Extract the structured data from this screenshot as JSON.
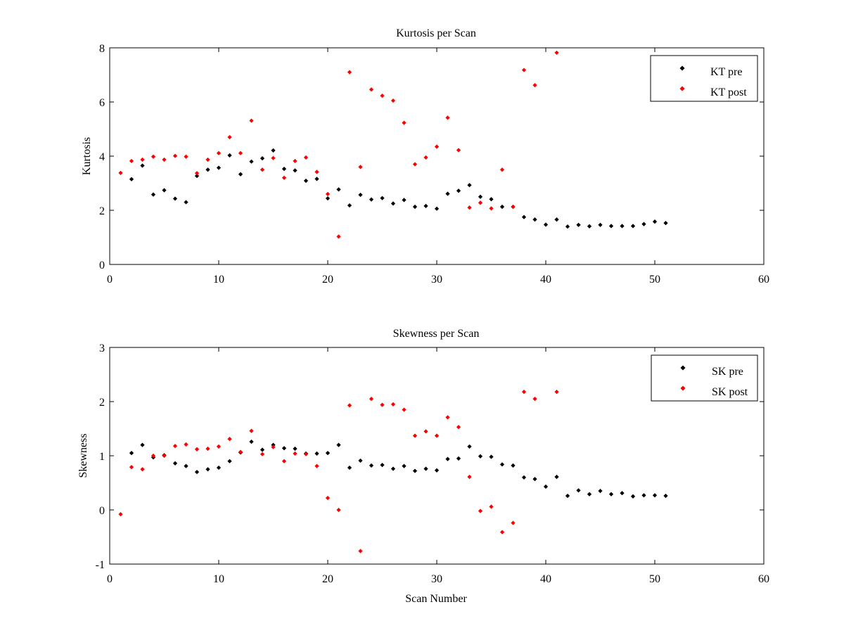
{
  "colors": {
    "pre": "#000000",
    "post": "#ff0000",
    "background": "#ffffff",
    "axes": "#000000"
  },
  "chart_data": [
    {
      "type": "scatter",
      "title": "Kurtosis per Scan",
      "xlabel": "",
      "ylabel": "Kurtosis",
      "xlim": [
        0,
        60
      ],
      "ylim": [
        0,
        8
      ],
      "xticks": [
        "0",
        "10",
        "20",
        "30",
        "40",
        "50",
        "60"
      ],
      "yticks": [
        "0",
        "2",
        "4",
        "6",
        "8"
      ],
      "grid": false,
      "legend_position": "top-right",
      "series": [
        {
          "name": "KT pre",
          "color": "#000000",
          "points": [
            [
              2,
              3.15
            ],
            [
              3,
              3.65
            ],
            [
              4,
              2.58
            ],
            [
              5,
              2.74
            ],
            [
              6,
              2.43
            ],
            [
              7,
              2.3
            ],
            [
              8,
              3.27
            ],
            [
              9,
              3.5
            ],
            [
              10,
              3.57
            ],
            [
              11,
              4.03
            ],
            [
              12,
              3.33
            ],
            [
              13,
              3.8
            ],
            [
              14,
              3.92
            ],
            [
              15,
              4.21
            ],
            [
              16,
              3.53
            ],
            [
              17,
              3.47
            ],
            [
              18,
              3.09
            ],
            [
              19,
              3.16
            ],
            [
              20,
              2.44
            ],
            [
              21,
              2.77
            ],
            [
              22,
              2.18
            ],
            [
              23,
              2.57
            ],
            [
              24,
              2.4
            ],
            [
              25,
              2.45
            ],
            [
              26,
              2.25
            ],
            [
              27,
              2.38
            ],
            [
              28,
              2.13
            ],
            [
              29,
              2.16
            ],
            [
              30,
              2.06
            ],
            [
              31,
              2.61
            ],
            [
              32,
              2.72
            ],
            [
              33,
              2.93
            ],
            [
              34,
              2.5
            ],
            [
              35,
              2.41
            ],
            [
              36,
              2.13
            ],
            [
              37,
              2.13
            ],
            [
              38,
              1.75
            ],
            [
              39,
              1.66
            ],
            [
              40,
              1.47
            ],
            [
              41,
              1.66
            ],
            [
              42,
              1.4
            ],
            [
              43,
              1.46
            ],
            [
              44,
              1.41
            ],
            [
              45,
              1.46
            ],
            [
              46,
              1.42
            ],
            [
              47,
              1.42
            ],
            [
              48,
              1.42
            ],
            [
              49,
              1.49
            ],
            [
              50,
              1.58
            ],
            [
              51,
              1.53
            ]
          ]
        },
        {
          "name": "KT post",
          "color": "#ff0000",
          "points": [
            [
              1,
              3.38
            ],
            [
              2,
              3.82
            ],
            [
              3,
              3.87
            ],
            [
              4,
              3.98
            ],
            [
              5,
              3.87
            ],
            [
              6,
              4.01
            ],
            [
              7,
              3.98
            ],
            [
              8,
              3.37
            ],
            [
              9,
              3.87
            ],
            [
              10,
              4.11
            ],
            [
              11,
              4.7
            ],
            [
              12,
              4.11
            ],
            [
              13,
              5.31
            ],
            [
              14,
              3.5
            ],
            [
              15,
              3.93
            ],
            [
              16,
              3.2
            ],
            [
              17,
              3.82
            ],
            [
              18,
              3.95
            ],
            [
              19,
              3.42
            ],
            [
              20,
              2.6
            ],
            [
              21,
              1.03
            ],
            [
              22,
              7.1
            ],
            [
              23,
              3.6
            ],
            [
              24,
              6.46
            ],
            [
              25,
              6.23
            ],
            [
              26,
              6.05
            ],
            [
              27,
              5.23
            ],
            [
              28,
              3.7
            ],
            [
              29,
              3.95
            ],
            [
              30,
              4.35
            ],
            [
              31,
              5.42
            ],
            [
              32,
              4.22
            ],
            [
              33,
              2.1
            ],
            [
              34,
              2.28
            ],
            [
              35,
              2.07
            ],
            [
              36,
              3.5
            ],
            [
              37,
              2.13
            ],
            [
              38,
              7.18
            ],
            [
              39,
              6.62
            ],
            [
              41,
              7.82
            ]
          ]
        }
      ]
    },
    {
      "type": "scatter",
      "title": "Skewness per Scan",
      "xlabel": "Scan Number",
      "ylabel": "Skewness",
      "xlim": [
        0,
        60
      ],
      "ylim": [
        -1,
        3
      ],
      "xticks": [
        "0",
        "10",
        "20",
        "30",
        "40",
        "50",
        "60"
      ],
      "yticks": [
        "-1",
        "0",
        "1",
        "2",
        "3"
      ],
      "grid": false,
      "legend_position": "top-right",
      "series": [
        {
          "name": "SK pre",
          "color": "#000000",
          "points": [
            [
              2,
              1.05
            ],
            [
              3,
              1.2
            ],
            [
              4,
              0.97
            ],
            [
              5,
              1.01
            ],
            [
              6,
              0.86
            ],
            [
              7,
              0.81
            ],
            [
              8,
              0.7
            ],
            [
              9,
              0.75
            ],
            [
              10,
              0.78
            ],
            [
              11,
              0.9
            ],
            [
              12,
              1.06
            ],
            [
              13,
              1.26
            ],
            [
              14,
              1.11
            ],
            [
              15,
              1.2
            ],
            [
              16,
              1.14
            ],
            [
              17,
              1.13
            ],
            [
              18,
              1.04
            ],
            [
              19,
              1.04
            ],
            [
              20,
              1.05
            ],
            [
              21,
              1.2
            ],
            [
              22,
              0.78
            ],
            [
              23,
              0.91
            ],
            [
              24,
              0.82
            ],
            [
              25,
              0.83
            ],
            [
              26,
              0.76
            ],
            [
              27,
              0.81
            ],
            [
              28,
              0.72
            ],
            [
              29,
              0.76
            ],
            [
              30,
              0.73
            ],
            [
              31,
              0.94
            ],
            [
              32,
              0.95
            ],
            [
              33,
              1.17
            ],
            [
              34,
              0.99
            ],
            [
              35,
              0.98
            ],
            [
              36,
              0.84
            ],
            [
              37,
              0.82
            ],
            [
              38,
              0.6
            ],
            [
              39,
              0.57
            ],
            [
              40,
              0.43
            ],
            [
              41,
              0.61
            ],
            [
              42,
              0.26
            ],
            [
              43,
              0.36
            ],
            [
              44,
              0.29
            ],
            [
              45,
              0.35
            ],
            [
              46,
              0.29
            ],
            [
              47,
              0.31
            ],
            [
              48,
              0.25
            ],
            [
              49,
              0.27
            ],
            [
              50,
              0.27
            ],
            [
              51,
              0.26
            ]
          ]
        },
        {
          "name": "SK post",
          "color": "#ff0000",
          "points": [
            [
              1,
              -0.08
            ],
            [
              2,
              0.79
            ],
            [
              3,
              0.75
            ],
            [
              4,
              1.0
            ],
            [
              5,
              1.0
            ],
            [
              6,
              1.18
            ],
            [
              7,
              1.21
            ],
            [
              8,
              1.12
            ],
            [
              9,
              1.13
            ],
            [
              10,
              1.17
            ],
            [
              11,
              1.31
            ],
            [
              12,
              1.07
            ],
            [
              13,
              1.46
            ],
            [
              14,
              1.03
            ],
            [
              15,
              1.16
            ],
            [
              16,
              0.9
            ],
            [
              17,
              1.04
            ],
            [
              18,
              1.03
            ],
            [
              19,
              0.81
            ],
            [
              20,
              0.22
            ],
            [
              21,
              0.0
            ],
            [
              22,
              1.93
            ],
            [
              23,
              -0.76
            ],
            [
              24,
              2.05
            ],
            [
              25,
              1.94
            ],
            [
              26,
              1.95
            ],
            [
              27,
              1.85
            ],
            [
              28,
              1.37
            ],
            [
              29,
              1.45
            ],
            [
              30,
              1.37
            ],
            [
              31,
              1.71
            ],
            [
              32,
              1.53
            ],
            [
              33,
              0.61
            ],
            [
              34,
              -0.02
            ],
            [
              35,
              0.06
            ],
            [
              36,
              -0.41
            ],
            [
              37,
              -0.24
            ],
            [
              38,
              2.18
            ],
            [
              39,
              2.05
            ],
            [
              41,
              2.18
            ]
          ]
        }
      ]
    }
  ]
}
